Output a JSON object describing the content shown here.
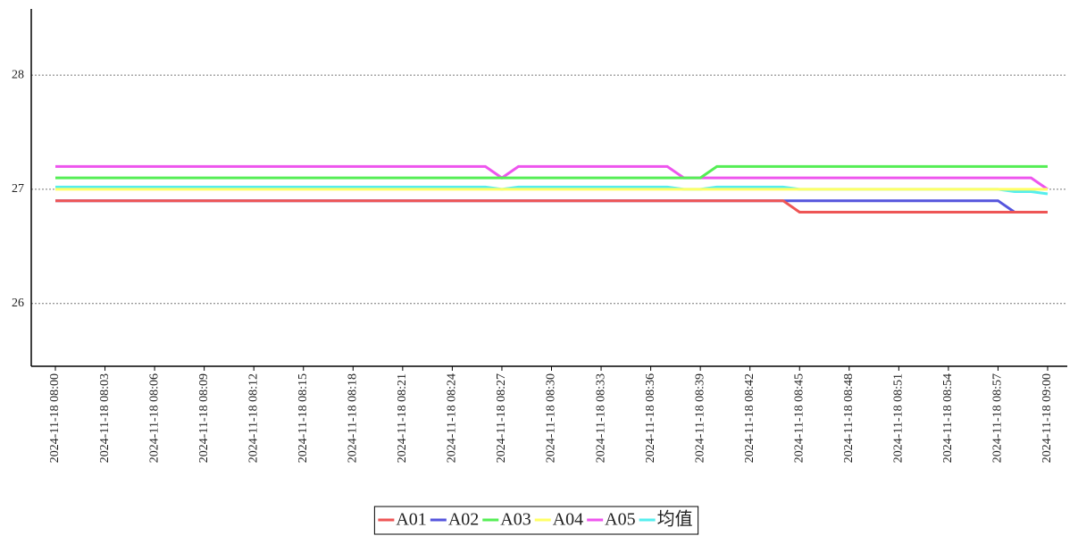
{
  "chart_data": {
    "type": "line",
    "categories": [
      "2024-11-18 08:00",
      null,
      null,
      "2024-11-18 08:03",
      null,
      null,
      "2024-11-18 08:06",
      null,
      null,
      "2024-11-18 08:09",
      null,
      null,
      "2024-11-18 08:12",
      null,
      null,
      "2024-11-18 08:15",
      null,
      null,
      "2024-11-18 08:18",
      null,
      null,
      "2024-11-18 08:21",
      null,
      null,
      "2024-11-18 08:24",
      null,
      null,
      "2024-11-18 08:27",
      null,
      null,
      "2024-11-18 08:30",
      null,
      null,
      "2024-11-18 08:33",
      null,
      null,
      "2024-11-18 08:36",
      null,
      null,
      "2024-11-18 08:39",
      null,
      null,
      "2024-11-18 08:42",
      null,
      null,
      "2024-11-18 08:45",
      null,
      null,
      "2024-11-18 08:48",
      null,
      null,
      "2024-11-18 08:51",
      null,
      null,
      "2024-11-18 08:54",
      null,
      null,
      "2024-11-18 08:57",
      null,
      null,
      "2024-11-18 09:00"
    ],
    "series": [
      {
        "name": "A01",
        "color": "#ee5555",
        "values": [
          26.9,
          26.9,
          26.9,
          26.9,
          26.9,
          26.9,
          26.9,
          26.9,
          26.9,
          26.9,
          26.9,
          26.9,
          26.9,
          26.9,
          26.9,
          26.9,
          26.9,
          26.9,
          26.9,
          26.9,
          26.9,
          26.9,
          26.9,
          26.9,
          26.9,
          26.9,
          26.9,
          26.9,
          26.9,
          26.9,
          26.9,
          26.9,
          26.9,
          26.9,
          26.9,
          26.9,
          26.9,
          26.9,
          26.9,
          26.9,
          26.9,
          26.9,
          26.9,
          26.9,
          26.9,
          26.8,
          26.8,
          26.8,
          26.8,
          26.8,
          26.8,
          26.8,
          26.8,
          26.8,
          26.8,
          26.8,
          26.8,
          26.8,
          26.8,
          26.8,
          26.8
        ]
      },
      {
        "name": "A02",
        "color": "#5555dd",
        "values": [
          26.9,
          26.9,
          26.9,
          26.9,
          26.9,
          26.9,
          26.9,
          26.9,
          26.9,
          26.9,
          26.9,
          26.9,
          26.9,
          26.9,
          26.9,
          26.9,
          26.9,
          26.9,
          26.9,
          26.9,
          26.9,
          26.9,
          26.9,
          26.9,
          26.9,
          26.9,
          26.9,
          26.9,
          26.9,
          26.9,
          26.9,
          26.9,
          26.9,
          26.9,
          26.9,
          26.9,
          26.9,
          26.9,
          26.9,
          26.9,
          26.9,
          26.9,
          26.9,
          26.9,
          26.9,
          26.9,
          26.9,
          26.9,
          26.9,
          26.9,
          26.9,
          26.9,
          26.9,
          26.9,
          26.9,
          26.9,
          26.9,
          26.9,
          26.8,
          26.8,
          26.8
        ]
      },
      {
        "name": "A03",
        "color": "#55ee55",
        "values": [
          27.1,
          27.1,
          27.1,
          27.1,
          27.1,
          27.1,
          27.1,
          27.1,
          27.1,
          27.1,
          27.1,
          27.1,
          27.1,
          27.1,
          27.1,
          27.1,
          27.1,
          27.1,
          27.1,
          27.1,
          27.1,
          27.1,
          27.1,
          27.1,
          27.1,
          27.1,
          27.1,
          27.1,
          27.1,
          27.1,
          27.1,
          27.1,
          27.1,
          27.1,
          27.1,
          27.1,
          27.1,
          27.1,
          27.1,
          27.1,
          27.2,
          27.2,
          27.2,
          27.2,
          27.2,
          27.2,
          27.2,
          27.2,
          27.2,
          27.2,
          27.2,
          27.2,
          27.2,
          27.2,
          27.2,
          27.2,
          27.2,
          27.2,
          27.2,
          27.2,
          27.2
        ]
      },
      {
        "name": "A04",
        "color": "#ffff66",
        "values": [
          27,
          27,
          27,
          27,
          27,
          27,
          27,
          27,
          27,
          27,
          27,
          27,
          27,
          27,
          27,
          27,
          27,
          27,
          27,
          27,
          27,
          27,
          27,
          27,
          27,
          27,
          27,
          27,
          27,
          27,
          27,
          27,
          27,
          27,
          27,
          27,
          27,
          27,
          27,
          27,
          27,
          27,
          27,
          27,
          27,
          27,
          27,
          27,
          27,
          27,
          27,
          27,
          27,
          27,
          27,
          27,
          27,
          27,
          27,
          27,
          27
        ]
      },
      {
        "name": "A05",
        "color": "#ee55ee",
        "values": [
          27.2,
          27.2,
          27.2,
          27.2,
          27.2,
          27.2,
          27.2,
          27.2,
          27.2,
          27.2,
          27.2,
          27.2,
          27.2,
          27.2,
          27.2,
          27.2,
          27.2,
          27.2,
          27.2,
          27.2,
          27.2,
          27.2,
          27.2,
          27.2,
          27.2,
          27.2,
          27.2,
          27.1,
          27.2,
          27.2,
          27.2,
          27.2,
          27.2,
          27.2,
          27.2,
          27.2,
          27.2,
          27.2,
          27.1,
          27.1,
          27.1,
          27.1,
          27.1,
          27.1,
          27.1,
          27.1,
          27.1,
          27.1,
          27.1,
          27.1,
          27.1,
          27.1,
          27.1,
          27.1,
          27.1,
          27.1,
          27.1,
          27.1,
          27.1,
          27.1,
          27
        ]
      },
      {
        "name": "均值",
        "color": "#55eeee",
        "values": [
          27.02,
          27.02,
          27.02,
          27.02,
          27.02,
          27.02,
          27.02,
          27.02,
          27.02,
          27.02,
          27.02,
          27.02,
          27.02,
          27.02,
          27.02,
          27.02,
          27.02,
          27.02,
          27.02,
          27.02,
          27.02,
          27.02,
          27.02,
          27.02,
          27.02,
          27.02,
          27.02,
          27,
          27.02,
          27.02,
          27.02,
          27.02,
          27.02,
          27.02,
          27.02,
          27.02,
          27.02,
          27.02,
          27,
          27,
          27.02,
          27.02,
          27.02,
          27.02,
          27.02,
          27,
          27,
          27,
          27,
          27,
          27,
          27,
          27,
          27,
          27,
          27,
          27,
          27,
          26.98,
          26.98,
          26.96
        ]
      }
    ],
    "ylim": [
      25.45,
      28.58
    ],
    "yticks": [
      26,
      27,
      28
    ],
    "grid": true,
    "legend": "bottom"
  }
}
